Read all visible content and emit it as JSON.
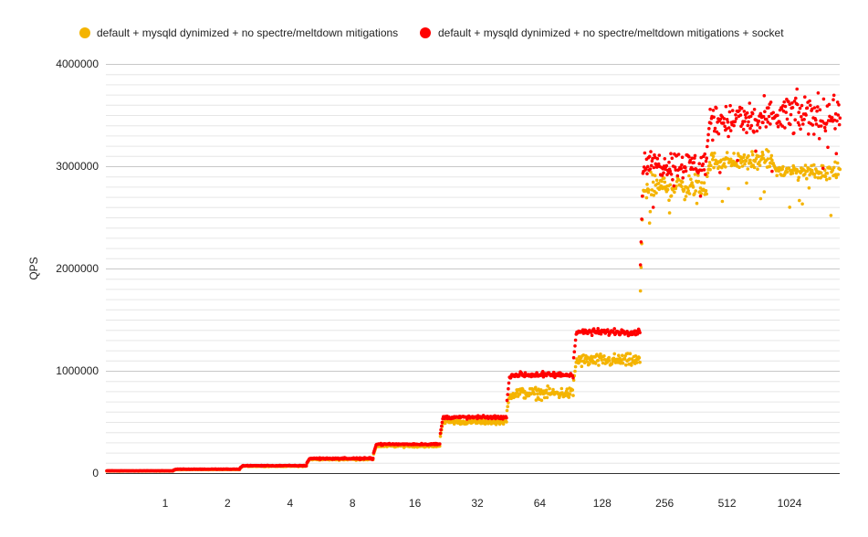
{
  "chart_data": {
    "type": "scatter",
    "title": "",
    "xlabel": "",
    "ylabel": "QPS",
    "ylim": [
      0,
      4000000
    ],
    "y_ticks": [
      "0",
      "1000000",
      "2000000",
      "3000000",
      "4000000"
    ],
    "y_minor_step": 100000,
    "grid": true,
    "legend_position": "top",
    "x_tick_labels": [
      "1",
      "2",
      "4",
      "8",
      "16",
      "32",
      "64",
      "128",
      "256",
      "512",
      "1024"
    ],
    "series": [
      {
        "name": "default + mysqld dynimized + no spectre/meltdown mitigations",
        "color": "#f4b400",
        "segment_levels": [
          20000,
          35000,
          68000,
          135000,
          265000,
          500000,
          780000,
          1100000,
          2800000,
          3050000,
          2950000
        ],
        "segment_spread": [
          0.04,
          0.04,
          0.04,
          0.04,
          0.03,
          0.03,
          0.05,
          0.04,
          0.03,
          0.02,
          0.02
        ]
      },
      {
        "name": "default + mysqld dynimized + no spectre/meltdown mitigations + socket",
        "color": "#ff0000",
        "segment_levels": [
          22000,
          38000,
          72000,
          142000,
          282000,
          545000,
          960000,
          1380000,
          3020000,
          3450000,
          3500000
        ],
        "segment_spread": [
          0.04,
          0.04,
          0.04,
          0.04,
          0.02,
          0.02,
          0.02,
          0.015,
          0.03,
          0.035,
          0.04
        ]
      }
    ]
  }
}
